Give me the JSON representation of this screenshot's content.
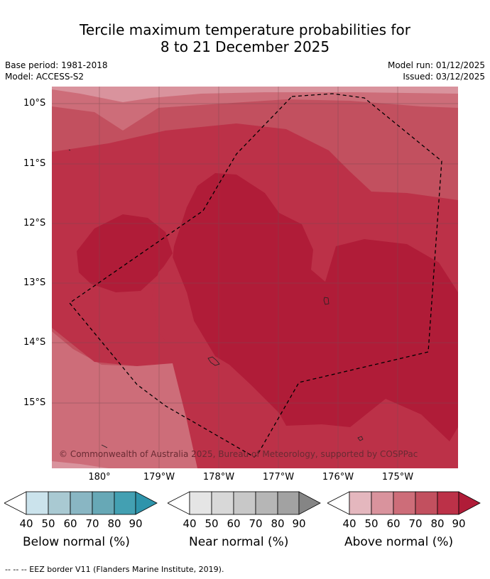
{
  "header": {
    "title_line1": "Tercile maximum temperature probabilities for",
    "title_line2": "8 to 21 December 2025",
    "base_period": "Base period: 1981-2018",
    "model": "Model: ACCESS-S2",
    "model_run": "Model run: 01/12/2025",
    "issued": "Issued: 03/12/2025"
  },
  "map": {
    "lat_labels": [
      "10°S",
      "11°S",
      "12°S",
      "13°S",
      "14°S",
      "15°S"
    ],
    "lon_labels": [
      "180°",
      "179°W",
      "178°W",
      "177°W",
      "176°W",
      "175°W"
    ],
    "copyright": "© Commonwealth of Australia 2025, Bureau of Meteorology, supported by COSPPac",
    "colors": {
      "above_40": "#e4b7be",
      "above_50": "#d9939d",
      "above_60": "#cd6d79",
      "above_70": "#c2505f",
      "above_80": "#bc3148",
      "above_90": "#b01c38",
      "eez_line": "#000000",
      "grid": "#7a4a52"
    }
  },
  "legends": {
    "below": {
      "title": "Below normal (%)",
      "ticks": [
        "40",
        "50",
        "60",
        "70",
        "80",
        "90"
      ],
      "colors": [
        "#ffffff",
        "#cbe3ec",
        "#a9c9d2",
        "#89b6c3",
        "#67a8b6",
        "#43a0b2",
        "#2e94ab"
      ]
    },
    "near": {
      "title": "Near normal (%)",
      "ticks": [
        "40",
        "50",
        "60",
        "70",
        "80",
        "90"
      ],
      "colors": [
        "#ffffff",
        "#e5e5e5",
        "#d8d8d8",
        "#c8c8c8",
        "#b6b6b6",
        "#a2a2a2",
        "#858585"
      ]
    },
    "above": {
      "title": "Above normal (%)",
      "ticks": [
        "40",
        "50",
        "60",
        "70",
        "80",
        "90"
      ],
      "colors": [
        "#ffffff",
        "#e4b7be",
        "#d9939d",
        "#cd6d79",
        "#c2505f",
        "#bc3148",
        "#b01c38"
      ]
    }
  },
  "footnote": "--  --  -- EEZ border V11 (Flanders Marine Institute, 2019)."
}
